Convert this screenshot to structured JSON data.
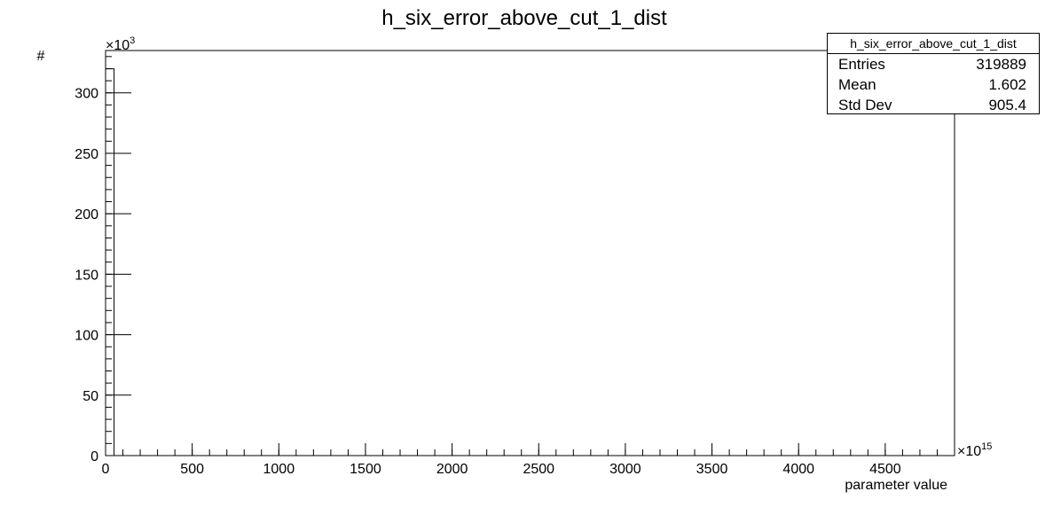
{
  "chart_data": {
    "type": "bar",
    "title": "h_six_error_above_cut_1_dist",
    "xlabel": "parameter value",
    "ylabel": "#",
    "x_multiplier": "×10",
    "x_exponent": "15",
    "y_multiplier": "×10",
    "y_exponent": "3",
    "xlim": [
      0,
      4900
    ],
    "ylim": [
      0,
      335
    ],
    "x_major_ticks": [
      0,
      500,
      1000,
      1500,
      2000,
      2500,
      3000,
      3500,
      4000,
      4500
    ],
    "x_tick_labels": [
      "0",
      "500",
      "1000",
      "1500",
      "2000",
      "2500",
      "3000",
      "3500",
      "4000",
      "4500"
    ],
    "x_minor_step": 100,
    "y_major_ticks": [
      0,
      50,
      100,
      150,
      200,
      250,
      300
    ],
    "y_tick_labels": [
      "0",
      "50",
      "100",
      "150",
      "200",
      "250",
      "300"
    ],
    "y_minor_step": 10,
    "bins": [
      {
        "x_low": 0,
        "x_high": 49,
        "value": 319.889
      }
    ],
    "stats": {
      "name": "h_six_error_above_cut_1_dist",
      "rows": [
        {
          "label": "Entries",
          "value": "319889"
        },
        {
          "label": "Mean",
          "value": "1.602"
        },
        {
          "label": "Std Dev",
          "value": "905.4"
        }
      ]
    }
  }
}
